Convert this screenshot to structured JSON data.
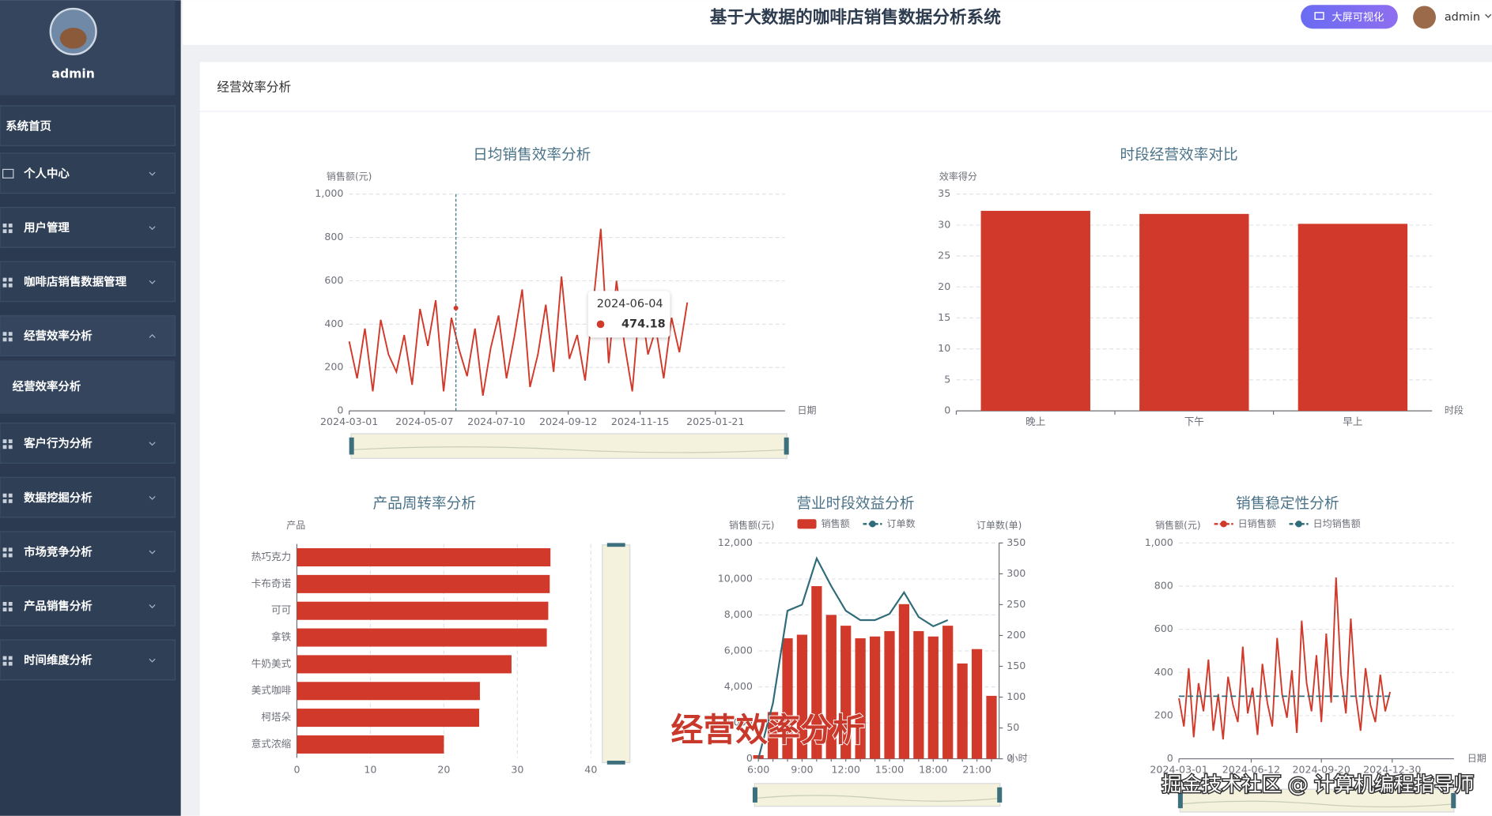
{
  "sidebar": {
    "user": "admin",
    "menu": [
      "系统首页",
      "个人中心",
      "用户管理",
      "咖啡店销售数据管理",
      "经营效率分析",
      "客户行为分析",
      "数据挖掘分析",
      "市场竞争分析",
      "产品销售分析",
      "时间维度分析"
    ],
    "submenu": [
      "经营效率分析"
    ]
  },
  "header": {
    "title": "基于大数据的咖啡店销售数据分析系统",
    "button": "大屏可视化",
    "user": "admin"
  },
  "panel": {
    "title": "经营效率分析"
  },
  "overlay": {
    "caption": "经营效率分析",
    "watermark": "掘金技术社区 @ 计算机编程指导师"
  },
  "chart_data": [
    {
      "type": "line",
      "title": "日均销售效率分析",
      "y_label": "销售额(元)",
      "x_label": "日期",
      "color": "#d13a2b",
      "grid": true,
      "x": [
        "2024-03-01",
        "2024-03-08",
        "2024-03-15",
        "2024-03-22",
        "2024-03-29",
        "2024-04-05",
        "2024-04-12",
        "2024-04-19",
        "2024-04-26",
        "2024-05-03",
        "2024-05-10",
        "2024-05-17",
        "2024-05-24",
        "2024-05-31",
        "2024-06-07",
        "2024-06-14",
        "2024-06-21",
        "2024-06-28",
        "2024-07-05",
        "2024-07-12",
        "2024-07-19",
        "2024-07-26",
        "2024-08-02",
        "2024-08-09",
        "2024-08-16",
        "2024-08-23",
        "2024-08-30",
        "2024-09-06",
        "2024-09-13",
        "2024-09-20",
        "2024-09-27",
        "2024-10-04",
        "2024-10-11",
        "2024-10-18",
        "2024-10-25",
        "2024-11-01",
        "2024-11-08",
        "2024-11-15",
        "2024-11-22",
        "2024-11-29",
        "2024-12-06",
        "2024-12-13",
        "2024-12-20",
        "2024-12-27"
      ],
      "values": [
        320,
        150,
        380,
        90,
        420,
        260,
        180,
        350,
        120,
        470,
        300,
        510,
        90,
        430,
        280,
        160,
        380,
        70,
        290,
        440,
        150,
        340,
        560,
        110,
        260,
        490,
        180,
        620,
        240,
        350,
        140,
        480,
        840,
        220,
        600,
        310,
        90,
        520,
        260,
        380,
        150,
        430,
        270,
        500
      ],
      "xlim": [
        "2024-03-01",
        "2025-03-24"
      ],
      "xticks": [
        "2024-03-01",
        "2024-05-07",
        "2024-07-10",
        "2024-09-12",
        "2024-11-15",
        "2025-01-21"
      ],
      "ylim": [
        0,
        1000
      ],
      "yticks": [
        0,
        200,
        400,
        600,
        800,
        {
          "value": 1000,
          "label": "1,000"
        }
      ],
      "tooltip": {
        "x": "2024-06-04",
        "value": 474.18
      }
    },
    {
      "type": "bar",
      "title": "时段经营效率对比",
      "y_label": "效率得分",
      "x_label": "时段",
      "color": "#d13a2b",
      "grid": true,
      "categories": [
        "晚上",
        "下午",
        "早上"
      ],
      "values": [
        32.3,
        31.8,
        30.2
      ],
      "ylim": [
        0,
        35
      ],
      "yticks": [
        0,
        5,
        10,
        15,
        20,
        25,
        30,
        35
      ]
    },
    {
      "type": "bar",
      "horizontal": true,
      "title": "产品周转率分析",
      "y_label": "产品",
      "color": "#d13a2b",
      "grid": true,
      "categories": [
        "热巧克力",
        "卡布奇诺",
        "可可",
        "拿铁",
        "牛奶美式",
        "美式咖啡",
        "柯塔朵",
        "意式浓缩"
      ],
      "values": [
        34.5,
        34.4,
        34.2,
        34.0,
        29.2,
        24.9,
        24.8,
        20.0
      ],
      "xlim": [
        0,
        40
      ],
      "xticks": [
        0,
        10,
        20,
        30,
        40
      ]
    },
    {
      "type": "combo",
      "title": "营业时段效益分析",
      "y_label": "销售额(元)",
      "y2_label": "订单数(单)",
      "x_label": "小时",
      "grid": true,
      "categories": [
        "6:00",
        null,
        null,
        "9:00",
        null,
        null,
        "12:00",
        null,
        null,
        "15:00",
        null,
        null,
        "18:00",
        null,
        null,
        "21:00",
        null
      ],
      "series": [
        {
          "name": "销售额",
          "type": "bar",
          "color": "#d13a2b",
          "values": [
            200,
            2600,
            6700,
            6900,
            9600,
            8000,
            7400,
            6700,
            6800,
            7100,
            8600,
            7100,
            6800,
            7400,
            5300,
            6100,
            3500
          ]
        },
        {
          "name": "订单数",
          "type": "line",
          "axis": "y2",
          "color": "#2f6b78",
          "values": [
            0,
            90,
            240,
            250,
            325,
            280,
            240,
            225,
            225,
            235,
            270,
            230,
            215,
            225,
            null,
            null,
            null
          ]
        }
      ],
      "ylim": [
        0,
        12000
      ],
      "yticks": [
        0,
        {
          "value": 2000,
          "label": "2,000"
        },
        {
          "value": 4000,
          "label": "4,000"
        },
        {
          "value": 6000,
          "label": "6,000"
        },
        {
          "value": 8000,
          "label": "8,000"
        },
        {
          "value": 10000,
          "label": "10,000"
        },
        {
          "value": 12000,
          "label": "12,000"
        }
      ],
      "y2lim": [
        0,
        350
      ],
      "y2ticks": [
        0,
        50,
        100,
        150,
        200,
        250,
        300,
        350
      ]
    },
    {
      "type": "line",
      "title": "销售稳定性分析",
      "y_label": "销售额(元)",
      "x_label": "日期",
      "grid": true,
      "x": [
        "2024-03-01",
        "2024-03-08",
        "2024-03-15",
        "2024-03-22",
        "2024-03-29",
        "2024-04-05",
        "2024-04-12",
        "2024-04-19",
        "2024-04-26",
        "2024-05-03",
        "2024-05-10",
        "2024-05-17",
        "2024-05-24",
        "2024-05-31",
        "2024-06-07",
        "2024-06-14",
        "2024-06-21",
        "2024-06-28",
        "2024-07-05",
        "2024-07-12",
        "2024-07-19",
        "2024-07-26",
        "2024-08-02",
        "2024-08-09",
        "2024-08-16",
        "2024-08-23",
        "2024-08-30",
        "2024-09-06",
        "2024-09-13",
        "2024-09-20",
        "2024-09-27",
        "2024-10-04",
        "2024-10-11",
        "2024-10-18",
        "2024-10-25",
        "2024-11-01",
        "2024-11-08",
        "2024-11-15",
        "2024-11-22",
        "2024-11-29",
        "2024-12-06",
        "2024-12-13",
        "2024-12-20",
        "2024-12-27"
      ],
      "series": [
        {
          "name": "日销售额",
          "color": "#d13a2b",
          "values": [
            280,
            150,
            420,
            100,
            350,
            220,
            460,
            130,
            300,
            90,
            380,
            250,
            170,
            520,
            210,
            330,
            110,
            440,
            260,
            150,
            560,
            300,
            190,
            410,
            120,
            640,
            350,
            220,
            480,
            170,
            580,
            260,
            840,
            390,
            210,
            650,
            300,
            130,
            420,
            250,
            170,
            390,
            220,
            310
          ]
        },
        {
          "name": "日均销售额",
          "color": "#2f6b78",
          "dashed": true,
          "values": [
            290,
            290,
            290,
            290,
            290,
            290,
            290,
            290,
            290,
            290,
            290,
            290,
            290,
            290,
            290,
            290,
            290,
            290,
            290,
            290,
            290,
            290,
            290,
            290,
            290,
            290,
            290,
            290,
            290,
            290,
            290,
            290,
            290,
            290,
            290,
            290,
            290,
            290,
            290,
            290,
            290,
            290,
            290,
            290
          ]
        }
      ],
      "xlim": [
        "2024-03-01",
        "2025-03-28"
      ],
      "xticks": [
        "2024-03-01",
        "2024-06-12",
        "2024-09-20",
        "2024-12-30"
      ],
      "ylim": [
        0,
        1000
      ],
      "yticks": [
        0,
        200,
        400,
        600,
        800,
        {
          "value": 1000,
          "label": "1,000"
        }
      ]
    }
  ]
}
